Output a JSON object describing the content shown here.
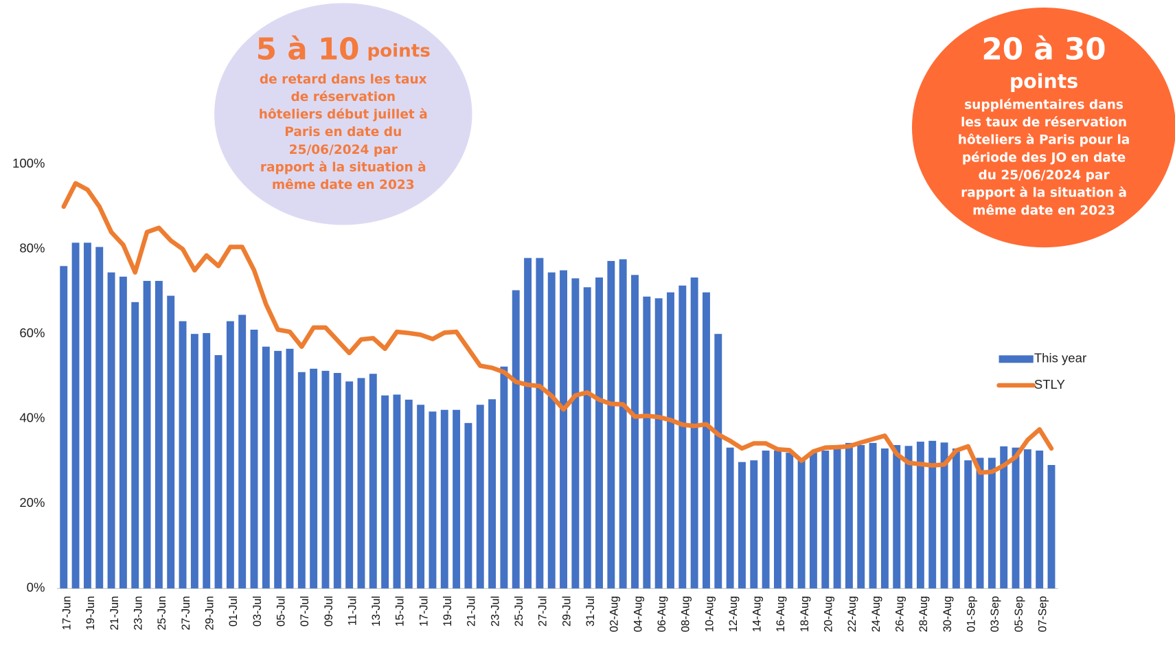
{
  "chart_data": {
    "type": "bar-line",
    "categories": [
      "17-Jun",
      null,
      "19-Jun",
      null,
      "21-Jun",
      null,
      "23-Jun",
      null,
      "25-Jun",
      null,
      "27-Jun",
      null,
      "29-Jun",
      null,
      "01-Jul",
      null,
      "03-Jul",
      null,
      "05-Jul",
      null,
      "07-Jul",
      null,
      "09-Jul",
      null,
      "11-Jul",
      null,
      "13-Jul",
      null,
      "15-Jul",
      null,
      "17-Jul",
      null,
      "19-Jul",
      null,
      "21-Jul",
      null,
      "23-Jul",
      null,
      "25-Jul",
      null,
      "27-Jul",
      null,
      "29-Jul",
      null,
      "31-Jul",
      null,
      "02-Aug",
      null,
      "04-Aug",
      null,
      "06-Aug",
      null,
      "08-Aug",
      null,
      "10-Aug",
      null,
      "12-Aug",
      null,
      "14-Aug",
      null,
      "16-Aug",
      null,
      "18-Aug",
      null,
      "20-Aug",
      null,
      "22-Aug",
      null,
      "24-Aug",
      null,
      "26-Aug",
      null,
      "28-Aug",
      null,
      "30-Aug",
      null,
      "01-Sep",
      null,
      "03-Sep",
      null,
      "05-Sep",
      null,
      "07-Sep",
      null
    ],
    "series": [
      {
        "name": "This year",
        "kind": "bar",
        "color": "#4472c4",
        "values": [
          76,
          81.5,
          81.5,
          80.5,
          74.5,
          73.5,
          67.5,
          72.5,
          72.5,
          69,
          63,
          60,
          60.2,
          55,
          63,
          64.5,
          61,
          57,
          56,
          56.5,
          51,
          51.8,
          51.3,
          50.8,
          48.8,
          49.6,
          50.6,
          45.5,
          45.7,
          44.5,
          43.3,
          41.7,
          42.1,
          42.1,
          39,
          43.3,
          44.6,
          52.3,
          70.3,
          77.9,
          77.9,
          74.5,
          75,
          73.1,
          71,
          73.3,
          77.2,
          77.6,
          73.9,
          68.8,
          68.4,
          69.8,
          71.4,
          73.3,
          69.8,
          60,
          33.2,
          29.8,
          30.2,
          32.5,
          32.5,
          32,
          30.5,
          32,
          32.5,
          33.5,
          34.3,
          33.8,
          34.3,
          33,
          33.8,
          33.6,
          34.6,
          34.8,
          34.4,
          33,
          30.2,
          30.8,
          30.8,
          33.5,
          33.2,
          32.8,
          32.5,
          29.1
        ]
      },
      {
        "name": "STLY",
        "kind": "line",
        "color": "#ed7d31",
        "values": [
          90,
          95.5,
          94,
          90,
          84,
          81,
          74.5,
          84,
          85,
          82,
          80,
          75,
          78.5,
          76,
          80.5,
          80.5,
          75,
          67,
          61,
          60.5,
          57,
          61.5,
          61.5,
          58.5,
          55.5,
          58.7,
          59,
          56.5,
          60.5,
          60.2,
          59.8,
          58.8,
          60.3,
          60.5,
          56.5,
          52.5,
          52,
          51,
          48.7,
          48,
          47.7,
          45.4,
          42.2,
          45.5,
          46.2,
          44.5,
          43.5,
          43.4,
          40.5,
          40.7,
          40.4,
          39.7,
          38.6,
          38.3,
          38.7,
          36.3,
          34.8,
          33,
          34.2,
          34.2,
          32.8,
          32.6,
          30.1,
          32.3,
          33.2,
          33.3,
          33.5,
          34.4,
          35.2,
          36,
          31.7,
          29.6,
          29.3,
          29,
          29.2,
          32.5,
          33.5,
          27.3,
          27.5,
          29,
          31,
          35,
          37.5,
          33
        ]
      }
    ],
    "ylim": [
      0,
      100
    ],
    "yticks": [
      {
        "value": 0,
        "label": "0%"
      },
      {
        "value": 20,
        "label": "20%"
      },
      {
        "value": 40,
        "label": "40%"
      },
      {
        "value": 60,
        "label": "60%"
      },
      {
        "value": 80,
        "label": "80%"
      },
      {
        "value": 100,
        "label": "100%"
      }
    ],
    "legend": "right",
    "annotations": [
      {
        "headline": "5 à 10",
        "unit": "points",
        "lines": [
          "de retard dans les taux",
          "de réservation",
          "hôteliers début juillet à",
          "Paris  en date du",
          "25/06/2024 par",
          "rapport à la situation à",
          "même date en 2023"
        ]
      },
      {
        "headline": "20 à 30",
        "unit": "points",
        "lines": [
          "supplémentaires dans",
          "les taux de réservation",
          "hôteliers à Paris pour la",
          "période des JO en date",
          "du 25/06/2024 par",
          "rapport à la situation à",
          "même date en 2023"
        ]
      }
    ]
  }
}
